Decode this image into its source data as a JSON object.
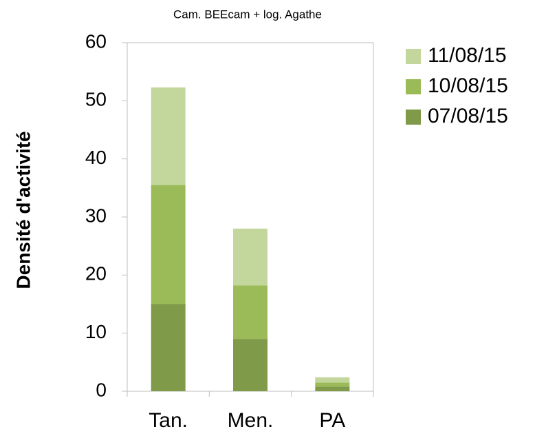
{
  "chart_data": {
    "type": "stacked_bar",
    "title": "Cam. BEEcam + log. Agathe",
    "y_label": "Densité d'activité",
    "categories": [
      "Tan.",
      "Men.",
      "PA"
    ],
    "series": [
      {
        "name": "07/08/15",
        "color": "#7f9a48",
        "values": [
          15,
          9,
          0.8
        ]
      },
      {
        "name": "10/08/15",
        "color": "#9bbb59",
        "values": [
          20.5,
          9.2,
          0.7
        ]
      },
      {
        "name": "11/08/15",
        "color": "#c3d69b",
        "values": [
          16.8,
          9.8,
          0.9
        ]
      }
    ],
    "ylim": [
      0,
      60
    ],
    "yticks": [
      0,
      10,
      20,
      30,
      40,
      50,
      60
    ],
    "grid": false,
    "legend": "right"
  }
}
